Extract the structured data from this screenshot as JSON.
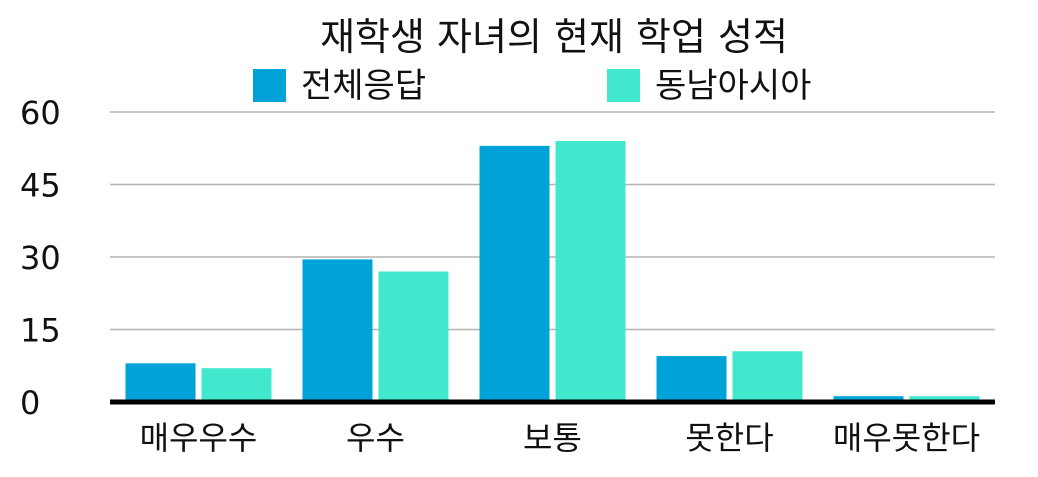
{
  "chart_data": {
    "type": "bar",
    "title": "재학생 자녀의 현재 학업 성적",
    "xlabel": "",
    "ylabel": "",
    "categories": [
      "매우우수",
      "우수",
      "보통",
      "못한다",
      "매우못한다"
    ],
    "series": [
      {
        "name": "전체응답",
        "color": "#00A3D7",
        "values": [
          8,
          29.5,
          53,
          9.5,
          1.2
        ]
      },
      {
        "name": "동남아시아",
        "color": "#41E8CD",
        "values": [
          7,
          27,
          54,
          10.5,
          1.2
        ]
      }
    ],
    "ylim": [
      0,
      60
    ],
    "yticks": [
      "0",
      "15",
      "30",
      "45",
      "60"
    ],
    "grid": true,
    "legend": "top-center"
  }
}
